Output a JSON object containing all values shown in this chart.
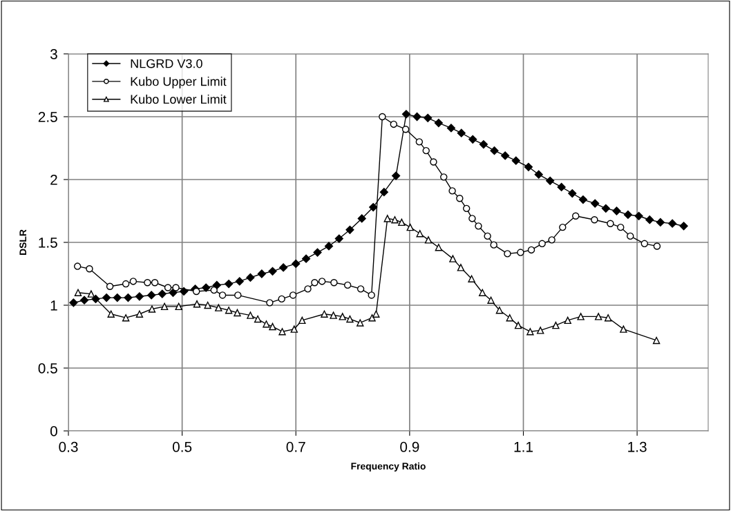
{
  "chart_data": {
    "type": "line",
    "xlabel": "Frequency Ratio",
    "ylabel": "DSLR",
    "xlim": [
      0.3,
      1.425
    ],
    "xticks": [
      0.3,
      0.5,
      0.7,
      0.9,
      1.1,
      1.3
    ],
    "ylim": [
      0,
      3
    ],
    "yticks": [
      0,
      0.5,
      1,
      1.5,
      2,
      2.5,
      3
    ],
    "grid": true,
    "legend": "top left",
    "line_style": "solid",
    "series": [
      {
        "name": "NLGRD V3.0",
        "color": "#000000",
        "marker": "diamond",
        "x": [
          0.309,
          0.328,
          0.348,
          0.367,
          0.386,
          0.405,
          0.425,
          0.446,
          0.465,
          0.484,
          0.503,
          0.523,
          0.542,
          0.561,
          0.582,
          0.601,
          0.62,
          0.64,
          0.659,
          0.678,
          0.7,
          0.718,
          0.738,
          0.758,
          0.776,
          0.795,
          0.816,
          0.836,
          0.855,
          0.876,
          0.894,
          0.913,
          0.932,
          0.951,
          0.973,
          0.991,
          1.011,
          1.03,
          1.049,
          1.068,
          1.087,
          1.109,
          1.127,
          1.147,
          1.167,
          1.186,
          1.205,
          1.226,
          1.245,
          1.264,
          1.284,
          1.303,
          1.322,
          1.341,
          1.362,
          1.382
        ],
        "values": [
          1.02,
          1.04,
          1.05,
          1.06,
          1.06,
          1.06,
          1.07,
          1.08,
          1.09,
          1.1,
          1.11,
          1.13,
          1.14,
          1.16,
          1.17,
          1.19,
          1.22,
          1.25,
          1.27,
          1.3,
          1.33,
          1.37,
          1.42,
          1.47,
          1.53,
          1.6,
          1.69,
          1.78,
          1.9,
          2.03,
          2.52,
          2.5,
          2.49,
          2.45,
          2.41,
          2.37,
          2.32,
          2.28,
          2.23,
          2.19,
          2.15,
          2.1,
          2.04,
          1.99,
          1.94,
          1.89,
          1.84,
          1.81,
          1.77,
          1.75,
          1.72,
          1.71,
          1.68,
          1.66,
          1.65,
          1.63
        ]
      },
      {
        "name": "Kubo Upper Limit",
        "color": "#000000",
        "marker": "circle",
        "x": [
          0.316,
          0.337,
          0.373,
          0.401,
          0.414,
          0.439,
          0.452,
          0.475,
          0.489,
          0.525,
          0.556,
          0.571,
          0.598,
          0.654,
          0.675,
          0.695,
          0.721,
          0.733,
          0.746,
          0.767,
          0.791,
          0.814,
          0.833,
          0.852,
          0.872,
          0.893,
          0.917,
          0.929,
          0.942,
          0.96,
          0.975,
          0.988,
          1.0,
          1.01,
          1.021,
          1.037,
          1.048,
          1.072,
          1.095,
          1.114,
          1.133,
          1.15,
          1.169,
          1.192,
          1.225,
          1.253,
          1.271,
          1.288,
          1.313,
          1.335
        ],
        "values": [
          1.31,
          1.29,
          1.15,
          1.17,
          1.19,
          1.18,
          1.18,
          1.14,
          1.14,
          1.11,
          1.12,
          1.08,
          1.08,
          1.02,
          1.05,
          1.08,
          1.13,
          1.18,
          1.19,
          1.18,
          1.16,
          1.13,
          1.08,
          2.5,
          2.44,
          2.4,
          2.3,
          2.23,
          2.14,
          2.02,
          1.91,
          1.85,
          1.77,
          1.69,
          1.63,
          1.55,
          1.48,
          1.41,
          1.42,
          1.44,
          1.49,
          1.52,
          1.62,
          1.71,
          1.68,
          1.65,
          1.62,
          1.55,
          1.49,
          1.47
        ]
      },
      {
        "name": "Kubo Lower Limit",
        "color": "#000000",
        "marker": "triangle",
        "x": [
          0.317,
          0.34,
          0.375,
          0.401,
          0.425,
          0.447,
          0.469,
          0.494,
          0.526,
          0.545,
          0.564,
          0.582,
          0.597,
          0.62,
          0.633,
          0.648,
          0.659,
          0.676,
          0.697,
          0.711,
          0.75,
          0.766,
          0.782,
          0.795,
          0.813,
          0.834,
          0.841,
          0.861,
          0.874,
          0.886,
          0.901,
          0.918,
          0.933,
          0.951,
          0.976,
          0.99,
          1.009,
          1.028,
          1.043,
          1.058,
          1.076,
          1.091,
          1.112,
          1.13,
          1.157,
          1.178,
          1.201,
          1.232,
          1.249,
          1.276,
          1.334
        ],
        "values": [
          1.1,
          1.09,
          0.93,
          0.9,
          0.93,
          0.97,
          0.99,
          0.99,
          1.01,
          1.0,
          0.98,
          0.96,
          0.94,
          0.92,
          0.89,
          0.85,
          0.83,
          0.79,
          0.81,
          0.88,
          0.93,
          0.92,
          0.91,
          0.89,
          0.86,
          0.9,
          0.93,
          1.69,
          1.68,
          1.66,
          1.62,
          1.57,
          1.52,
          1.46,
          1.37,
          1.3,
          1.21,
          1.1,
          1.04,
          0.96,
          0.9,
          0.84,
          0.79,
          0.8,
          0.84,
          0.88,
          0.91,
          0.91,
          0.9,
          0.81,
          0.72
        ]
      }
    ]
  }
}
